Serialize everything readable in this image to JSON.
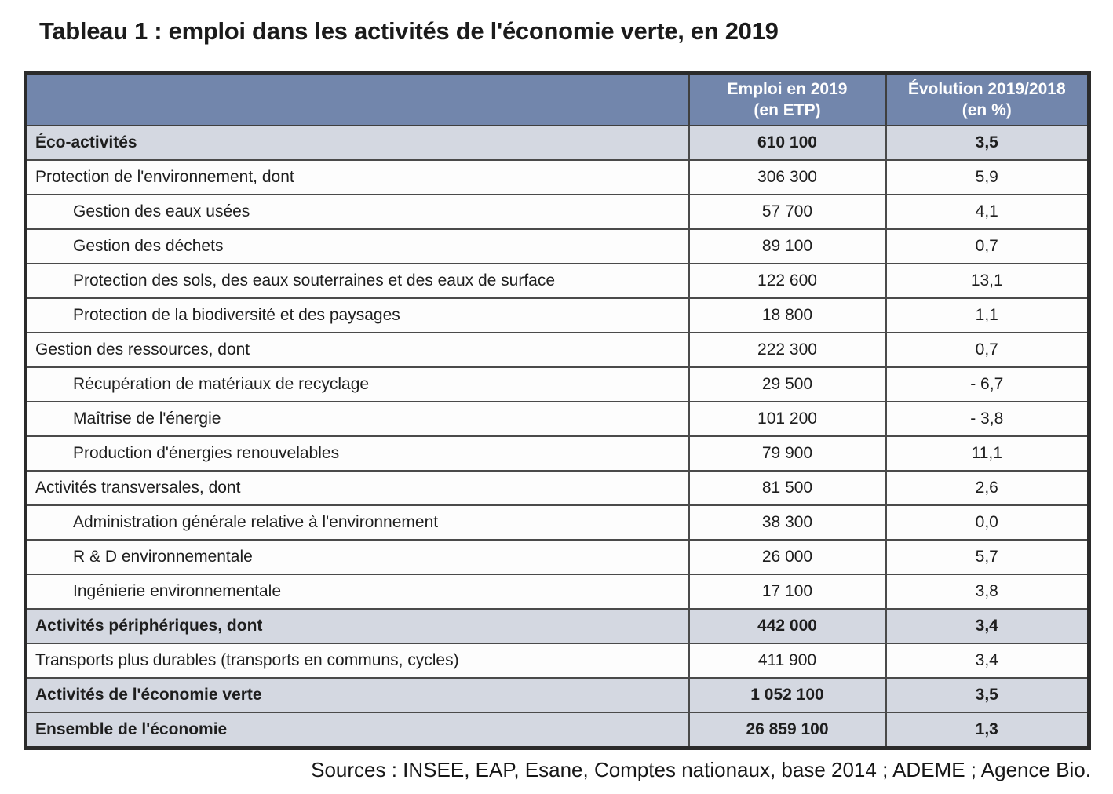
{
  "title": "Tableau 1 : emploi dans les activités de l'économie verte, en 2019",
  "source_note": "Sources : INSEE, EAP, Esane, Comptes nationaux, base 2014 ; ADEME ; Agence Bio.",
  "colors": {
    "header_bg": "#7286ac",
    "header_text": "#ffffff",
    "shaded_row_bg": "#d4d8e1",
    "border": "#3f3f3f",
    "text": "#1e1e1e"
  },
  "table": {
    "header": {
      "label_column": "",
      "employment": [
        "Emploi en 2019",
        "(en ETP)"
      ],
      "evolution": [
        "Évolution 2019/2018",
        "(en %)"
      ]
    },
    "rows": [
      {
        "label": "Éco-activités",
        "indent": false,
        "employment": "610 100",
        "evolution": "3,5",
        "emphasis": true
      },
      {
        "label": "Protection de l'environnement, dont",
        "indent": false,
        "employment": "306 300",
        "evolution": "5,9",
        "emphasis": false
      },
      {
        "label": "Gestion des eaux usées",
        "indent": true,
        "employment": "57 700",
        "evolution": "4,1",
        "emphasis": false
      },
      {
        "label": "Gestion des déchets",
        "indent": true,
        "employment": "89 100",
        "evolution": "0,7",
        "emphasis": false
      },
      {
        "label": "Protection des sols, des eaux souterraines et des eaux de surface",
        "indent": true,
        "employment": "122 600",
        "evolution": "13,1",
        "emphasis": false
      },
      {
        "label": "Protection de la biodiversité et des paysages",
        "indent": true,
        "employment": "18 800",
        "evolution": "1,1",
        "emphasis": false
      },
      {
        "label": "Gestion des ressources, dont",
        "indent": false,
        "employment": "222 300",
        "evolution": "0,7",
        "emphasis": false
      },
      {
        "label": "Récupération de matériaux de recyclage",
        "indent": true,
        "employment": "29 500",
        "evolution": "- 6,7",
        "emphasis": false
      },
      {
        "label": "Maîtrise de l'énergie",
        "indent": true,
        "employment": "101 200",
        "evolution": "- 3,8",
        "emphasis": false
      },
      {
        "label": "Production d'énergies renouvelables",
        "indent": true,
        "employment": "79 900",
        "evolution": "11,1",
        "emphasis": false
      },
      {
        "label": "Activités transversales, dont",
        "indent": false,
        "employment": "81 500",
        "evolution": "2,6",
        "emphasis": false
      },
      {
        "label": "Administration générale relative à l'environnement",
        "indent": true,
        "employment": "38 300",
        "evolution": "0,0",
        "emphasis": false
      },
      {
        "label": "R & D environnementale",
        "indent": true,
        "employment": "26 000",
        "evolution": "5,7",
        "emphasis": false
      },
      {
        "label": "Ingénierie environnementale",
        "indent": true,
        "employment": "17 100",
        "evolution": "3,8",
        "emphasis": false
      },
      {
        "label": "Activités périphériques, dont",
        "indent": false,
        "employment": "442 000",
        "evolution": "3,4",
        "emphasis": true
      },
      {
        "label": "Transports plus durables (transports en communs, cycles)",
        "indent": false,
        "employment": "411 900",
        "evolution": "3,4",
        "emphasis": false
      },
      {
        "label": "Activités de l'économie verte",
        "indent": false,
        "employment": "1 052 100",
        "evolution": "3,5",
        "emphasis": true
      },
      {
        "label": "Ensemble de l'économie",
        "indent": false,
        "employment": "26 859 100",
        "evolution": "1,3",
        "emphasis": true
      }
    ]
  }
}
